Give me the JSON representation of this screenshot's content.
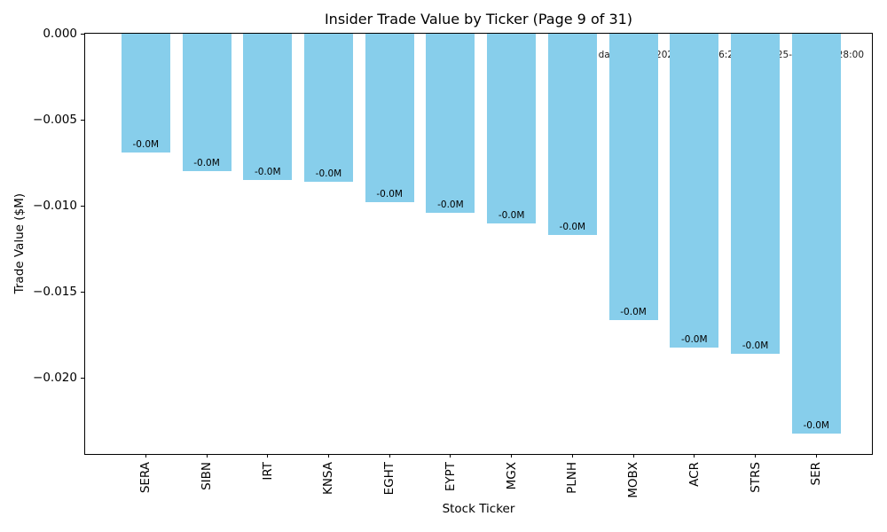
{
  "chart_data": {
    "type": "bar",
    "title": "Insider Trade Value by Ticker (Page 9 of 31)",
    "xlabel": "Stock Ticker",
    "ylabel": "Trade Value ($M)",
    "annotation": "Trade date range: 2025-11-26 16:28:00 – 2025-12-02 09:28:00",
    "categories": [
      "SERA",
      "SIBN",
      "IRT",
      "KNSA",
      "EGHT",
      "EYPT",
      "MGX",
      "PLNH",
      "MOBX",
      "ACR",
      "STRS",
      "SER"
    ],
    "values": [
      -0.0069,
      -0.008,
      -0.0085,
      -0.0086,
      -0.0098,
      -0.0104,
      -0.011,
      -0.0117,
      -0.0166,
      -0.0182,
      -0.0186,
      -0.0232
    ],
    "bar_value_labels": [
      "-0.0M",
      "-0.0M",
      "-0.0M",
      "-0.0M",
      "-0.0M",
      "-0.0M",
      "-0.0M",
      "-0.0M",
      "-0.0M",
      "-0.0M",
      "-0.0M",
      "-0.0M"
    ],
    "ytick_values": [
      0,
      -0.005,
      -0.01,
      -0.015,
      -0.02
    ],
    "ytick_labels": [
      "0.000",
      "−0.005",
      "−0.010",
      "−0.015",
      "−0.020"
    ],
    "ylim": [
      -0.0244,
      0
    ],
    "grid": false,
    "legend": null,
    "bar_color": "#87CEEB",
    "background_color": "#FFFFFF"
  }
}
